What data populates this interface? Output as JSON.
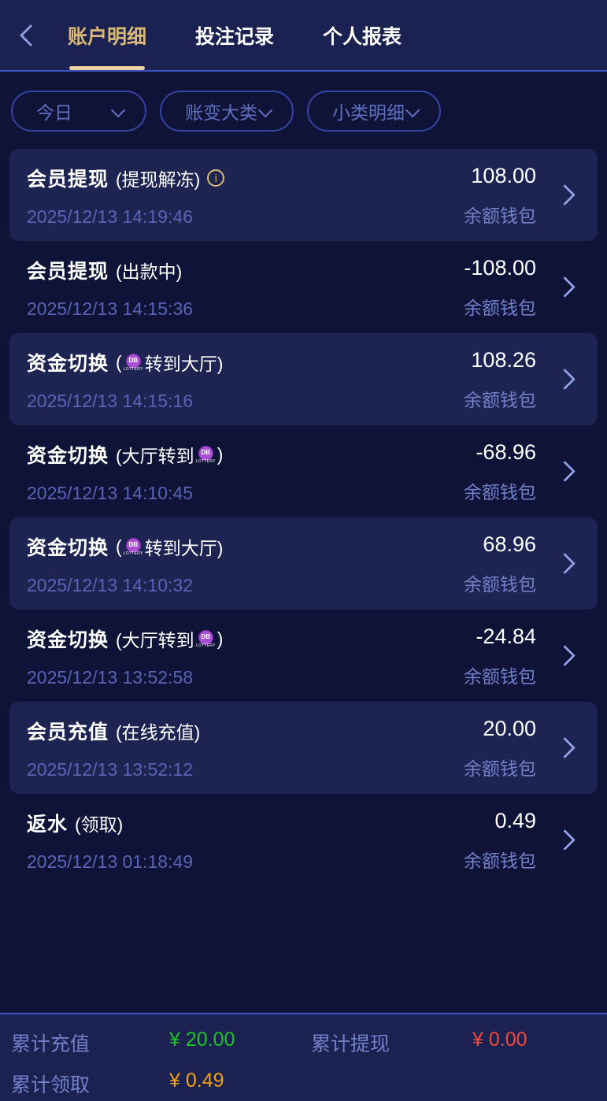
{
  "colors": {
    "page-bg": "#0e1337",
    "panel-bg": "#1b2150",
    "card-bg": "#1d2452",
    "line": "#3d52c4",
    "accent": "#d9b97a",
    "muted": "#5a64b4",
    "muted2": "#7280c8",
    "periwinkle": "#93a2e4",
    "pill-border": "#35449e",
    "pill-text": "#6070c0",
    "green": "#1dc524",
    "red": "#f2493b",
    "orange": "#f1a216",
    "purple": "#a94fd2"
  },
  "header": {
    "tabs": [
      {
        "label": "账户明细",
        "active": true
      },
      {
        "label": "投注记录",
        "active": false
      },
      {
        "label": "个人报表",
        "active": false
      }
    ]
  },
  "filters": [
    {
      "label": "今日"
    },
    {
      "label": "账变大类"
    },
    {
      "label": "小类明细"
    }
  ],
  "icons": {
    "info": "i",
    "back": "chevron-left",
    "row_arrow": "chevron-right"
  },
  "logo": {
    "text": "DB",
    "caption": "LOTTERY"
  },
  "transactions": [
    {
      "title": "会员提现",
      "sub_before": "(提现解冻)",
      "sub_after": "",
      "logo": false,
      "info": true,
      "amount": "108.00",
      "datetime": "2025/12/13 14:19:46",
      "wallet": "余额钱包",
      "card": true
    },
    {
      "title": "会员提现",
      "sub_before": "(出款中)",
      "sub_after": "",
      "logo": false,
      "info": false,
      "amount": "-108.00",
      "datetime": "2025/12/13 14:15:36",
      "wallet": "余额钱包",
      "card": false
    },
    {
      "title": "资金切换",
      "sub_before": "(",
      "sub_after": "转到大厅)",
      "logo": true,
      "info": false,
      "amount": "108.26",
      "datetime": "2025/12/13 14:15:16",
      "wallet": "余额钱包",
      "card": true
    },
    {
      "title": "资金切换",
      "sub_before": "(大厅转到",
      "sub_after": ")",
      "logo": true,
      "info": false,
      "amount": "-68.96",
      "datetime": "2025/12/13 14:10:45",
      "wallet": "余额钱包",
      "card": false
    },
    {
      "title": "资金切换",
      "sub_before": "(",
      "sub_after": "转到大厅)",
      "logo": true,
      "info": false,
      "amount": "68.96",
      "datetime": "2025/12/13 14:10:32",
      "wallet": "余额钱包",
      "card": true
    },
    {
      "title": "资金切换",
      "sub_before": "(大厅转到",
      "sub_after": ")",
      "logo": true,
      "info": false,
      "amount": "-24.84",
      "datetime": "2025/12/13 13:52:58",
      "wallet": "余额钱包",
      "card": false
    },
    {
      "title": "会员充值",
      "sub_before": "(在线充值)",
      "sub_after": "",
      "logo": false,
      "info": false,
      "amount": "20.00",
      "datetime": "2025/12/13 13:52:12",
      "wallet": "余额钱包",
      "card": true
    },
    {
      "title": "返水",
      "sub_before": "(领取)",
      "sub_after": "",
      "logo": false,
      "info": false,
      "amount": "0.49",
      "datetime": "2025/12/13 01:18:49",
      "wallet": "余额钱包",
      "card": false
    }
  ],
  "summary": [
    {
      "label": "累计充值",
      "value": "¥ 20.00",
      "color": "#1dc524"
    },
    {
      "label": "累计提现",
      "value": "¥ 0.00",
      "color": "#f2493b"
    },
    {
      "label": "累计领取",
      "value": "¥ 0.49",
      "color": "#f1a216"
    }
  ]
}
